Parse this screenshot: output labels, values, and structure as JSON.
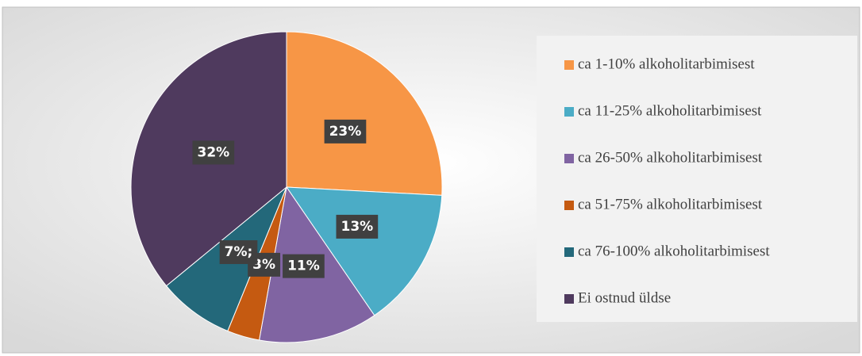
{
  "chart_data": {
    "type": "pie",
    "categories": [
      "ca 1-10% alkoholitarbimisest",
      "ca 11-25% alkoholitarbimisest",
      "ca 26-50% alkoholitarbimisest",
      "ca 51-75% alkoholitarbimisest",
      "ca 76-100% alkoholitarbimisest",
      "Ei ostnud üldse"
    ],
    "values": [
      23,
      13,
      11,
      3,
      7,
      32
    ],
    "value_labels": [
      "23%",
      "13%",
      "11%",
      "3%",
      "7%;",
      "32%"
    ],
    "colors": [
      "#f79646",
      "#4bacc6",
      "#8064a2",
      "#c55a11",
      "#23687a",
      "#4f3a5e"
    ],
    "legend": "right"
  }
}
